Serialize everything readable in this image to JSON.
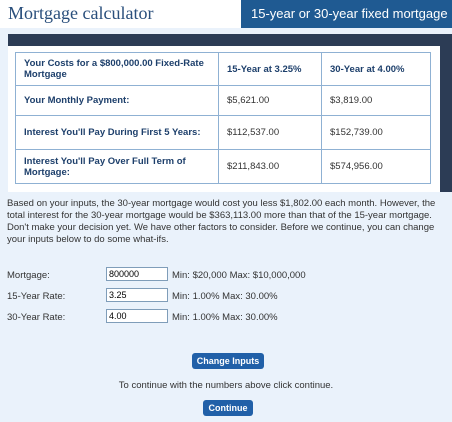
{
  "header": {
    "title": "Mortgage calculator",
    "tab": "15-year or 30-year fixed mortgage"
  },
  "table": {
    "header": {
      "label": "Your Costs for a $800,000.00 Fixed-Rate Mortgage",
      "col15": "15-Year at 3.25%",
      "col30": "30-Year at 4.00%"
    },
    "rows": [
      {
        "label": "Your Monthly Payment:",
        "v15": "$5,621.00",
        "v30": "$3,819.00"
      },
      {
        "label": "Interest You'll Pay During First 5 Years:",
        "v15": "$112,537.00",
        "v30": "$152,739.00"
      },
      {
        "label": "Interest You'll Pay Over Full Term of Mortgage:",
        "v15": "$211,843.00",
        "v30": "$574,956.00"
      }
    ]
  },
  "summary": "Based on your inputs, the 30-year mortgage would cost you less $1,802.00 each month. However, the total interest for the 30-year mortgage would be $363,113.00 more than that of the 15-year mortgage. Don't make your decision yet. We have other factors to consider. Before we continue, you can change your inputs below to do some what-ifs.",
  "form": {
    "mortgage": {
      "label": "Mortgage:",
      "value": "800000",
      "hint": "Min: $20,000 Max: $10,000,000"
    },
    "rate15": {
      "label": "15-Year Rate:",
      "value": "3.25",
      "hint": "Min: 1.00% Max: 30.00%"
    },
    "rate30": {
      "label": "30-Year Rate:",
      "value": "4.00",
      "hint": "Min: 1.00% Max: 30.00%"
    }
  },
  "buttons": {
    "change": "Change Inputs",
    "continue_text": "To continue with the numbers above click continue.",
    "continue": "Continue"
  },
  "colors": {
    "header_tab_bg": "#1f5a92",
    "panel_frame": "#2c3c55",
    "button_bg": "#2160a8",
    "page_bg": "#eaf2fb"
  }
}
